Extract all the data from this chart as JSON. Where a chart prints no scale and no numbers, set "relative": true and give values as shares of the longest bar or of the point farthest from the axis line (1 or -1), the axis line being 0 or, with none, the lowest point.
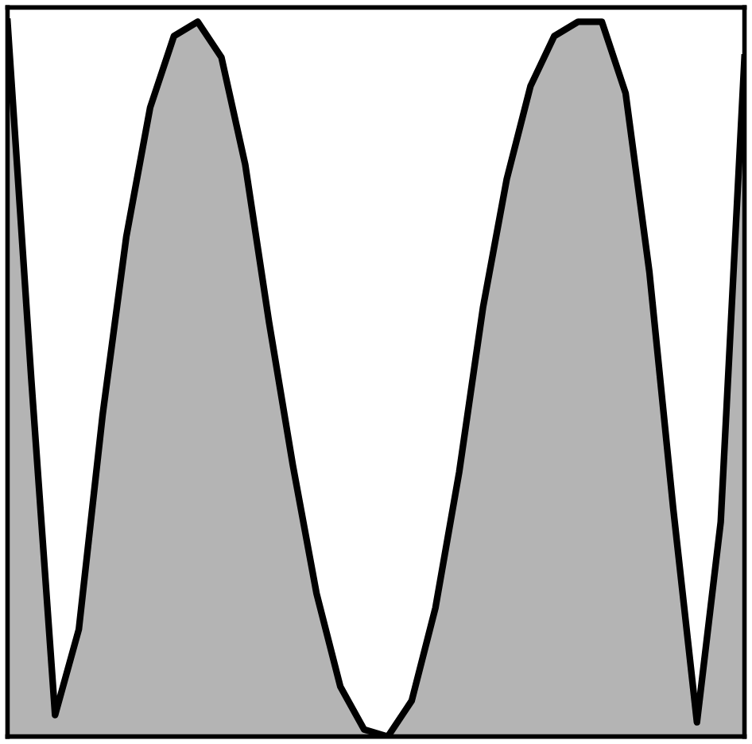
{
  "chart_data": {
    "type": "area",
    "relative": true,
    "categories": [
      null,
      null,
      null,
      null,
      null,
      null,
      null,
      null,
      null,
      null,
      null,
      null,
      null,
      null,
      null,
      null,
      null,
      null,
      null,
      null,
      null,
      null,
      null,
      null,
      null,
      null,
      null,
      null,
      null,
      null,
      null,
      null
    ],
    "series": [
      {
        "color": "#b4b4b4",
        "values": [
          1.0,
          0.5,
          0.03,
          0.15,
          0.45,
          0.7,
          0.88,
          0.98,
          1.0,
          0.95,
          0.8,
          0.58,
          0.38,
          0.2,
          0.07,
          0.01,
          0.0,
          0.05,
          0.18,
          0.37,
          0.6,
          0.78,
          0.91,
          0.98,
          1.0,
          1.0,
          0.9,
          0.65,
          0.32,
          0.02,
          0.3,
          0.95
        ]
      }
    ]
  }
}
